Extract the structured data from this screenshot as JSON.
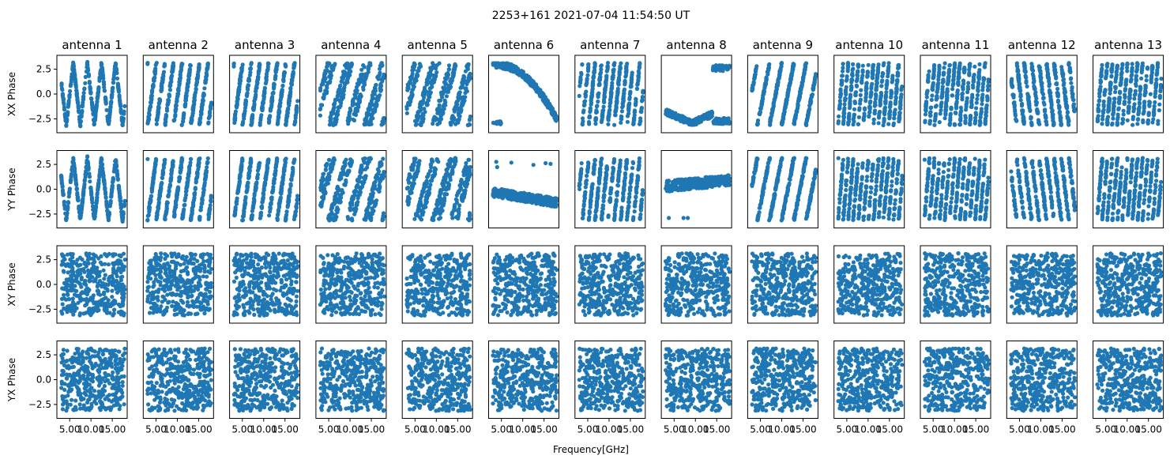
{
  "figure": {
    "title": "2253+161 2021-07-04 11:54:50 UT",
    "xlabel": "Frequency[GHz]"
  },
  "chart_data": {
    "type": "scatter",
    "title": "2253+161 2021-07-04 11:54:50 UT",
    "xlabel": "Frequency[GHz]",
    "columns": [
      "antenna 1",
      "antenna 2",
      "antenna 3",
      "antenna 4",
      "antenna 5",
      "antenna 6",
      "antenna 7",
      "antenna 8",
      "antenna 9",
      "antenna 10",
      "antenna 11",
      "antenna 12",
      "antenna 13"
    ],
    "rows": [
      "XX Phase",
      "YY Phase",
      "XY Phase",
      "YX Phase"
    ],
    "xlim": [
      2,
      18.5
    ],
    "ylim": [
      -3.9,
      3.9
    ],
    "xticks": [
      5,
      10,
      15
    ],
    "xtick_labels": [
      "5.00",
      "10.00",
      "15.00"
    ],
    "yticks": [
      -2.5,
      0,
      2.5
    ],
    "ytick_labels": [
      "−2.5",
      "0.0",
      "2.5"
    ],
    "marker_color": "#1f77b4",
    "freq_range_ghz": [
      3,
      18
    ],
    "phase_range": [
      -3.14,
      3.14
    ],
    "points_per_panel": 400,
    "patterns": {
      "XX Phase": [
        "fold-V",
        "stripes-steep",
        "stripes-steep",
        "stripes-shallow",
        "stripes-shallow",
        "curve-high-to-low",
        "stripes-dense",
        "dip-then-rise",
        "stripes-few",
        "stripes-fine",
        "stripes-fine",
        "stripes-neg",
        "stripes-fine"
      ],
      "YY Phase": [
        "fold-V",
        "stripes-steep",
        "stripes-steep",
        "stripes-shallow",
        "stripes-shallow",
        "flat-declining",
        "stripes-dense",
        "flat-band",
        "stripes-few",
        "stripes-fine",
        "stripes-fine",
        "stripes-neg",
        "stripes-fine"
      ],
      "XY Phase": [
        "random",
        "random",
        "random",
        "random",
        "random",
        "random",
        "random",
        "random",
        "random",
        "random",
        "random",
        "random",
        "random"
      ],
      "YX Phase": [
        "random",
        "random",
        "random",
        "random",
        "random",
        "random",
        "random",
        "random",
        "random",
        "random",
        "random",
        "random",
        "random"
      ]
    }
  }
}
